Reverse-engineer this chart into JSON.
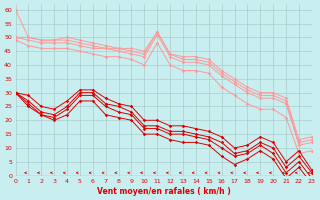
{
  "xlabel": "Vent moyen/en rafales ( km/h )",
  "background_color": "#c8eef0",
  "grid_color": "#aacccc",
  "x_ticks": [
    0,
    1,
    2,
    3,
    4,
    5,
    6,
    7,
    8,
    9,
    10,
    11,
    12,
    13,
    14,
    15,
    16,
    17,
    18,
    19,
    20,
    21,
    22,
    23
  ],
  "ylim": [
    0,
    62
  ],
  "xlim": [
    0,
    23
  ],
  "yticks": [
    0,
    5,
    10,
    15,
    20,
    25,
    30,
    35,
    40,
    45,
    50,
    55,
    60
  ],
  "lines_pink": [
    [
      60,
      50,
      49,
      49,
      50,
      49,
      48,
      47,
      46,
      46,
      45,
      52,
      44,
      43,
      43,
      42,
      38,
      35,
      32,
      30,
      30,
      28,
      13,
      14
    ],
    [
      50,
      50,
      49,
      49,
      49,
      48,
      47,
      46,
      46,
      45,
      44,
      52,
      44,
      42,
      42,
      41,
      37,
      34,
      31,
      29,
      29,
      27,
      12,
      13
    ],
    [
      50,
      49,
      48,
      48,
      48,
      47,
      46,
      46,
      45,
      44,
      43,
      51,
      43,
      41,
      41,
      40,
      36,
      33,
      30,
      28,
      28,
      26,
      11,
      12
    ],
    [
      49,
      47,
      46,
      46,
      46,
      45,
      44,
      43,
      43,
      42,
      40,
      48,
      40,
      38,
      38,
      37,
      32,
      29,
      26,
      24,
      24,
      21,
      8,
      9
    ]
  ],
  "pink_color": "#ff9999",
  "lines_red": [
    [
      30,
      29,
      25,
      24,
      27,
      31,
      31,
      28,
      26,
      25,
      20,
      20,
      18,
      18,
      17,
      16,
      14,
      10,
      11,
      14,
      12,
      5,
      9,
      2
    ],
    [
      30,
      27,
      23,
      22,
      25,
      30,
      30,
      26,
      25,
      23,
      18,
      18,
      16,
      16,
      15,
      14,
      12,
      8,
      9,
      12,
      10,
      3,
      7,
      1
    ],
    [
      30,
      26,
      22,
      21,
      24,
      29,
      29,
      25,
      23,
      22,
      17,
      17,
      15,
      15,
      14,
      13,
      10,
      7,
      8,
      11,
      8,
      1,
      5,
      -1
    ],
    [
      30,
      25,
      22,
      20,
      22,
      27,
      27,
      22,
      21,
      20,
      15,
      15,
      13,
      12,
      12,
      11,
      7,
      4,
      6,
      9,
      6,
      -1,
      3,
      -3
    ]
  ],
  "red_color": "#dd0000",
  "arrow_color": "#dd0000",
  "tick_color": "#dd0000",
  "xlabel_color": "#dd0000"
}
